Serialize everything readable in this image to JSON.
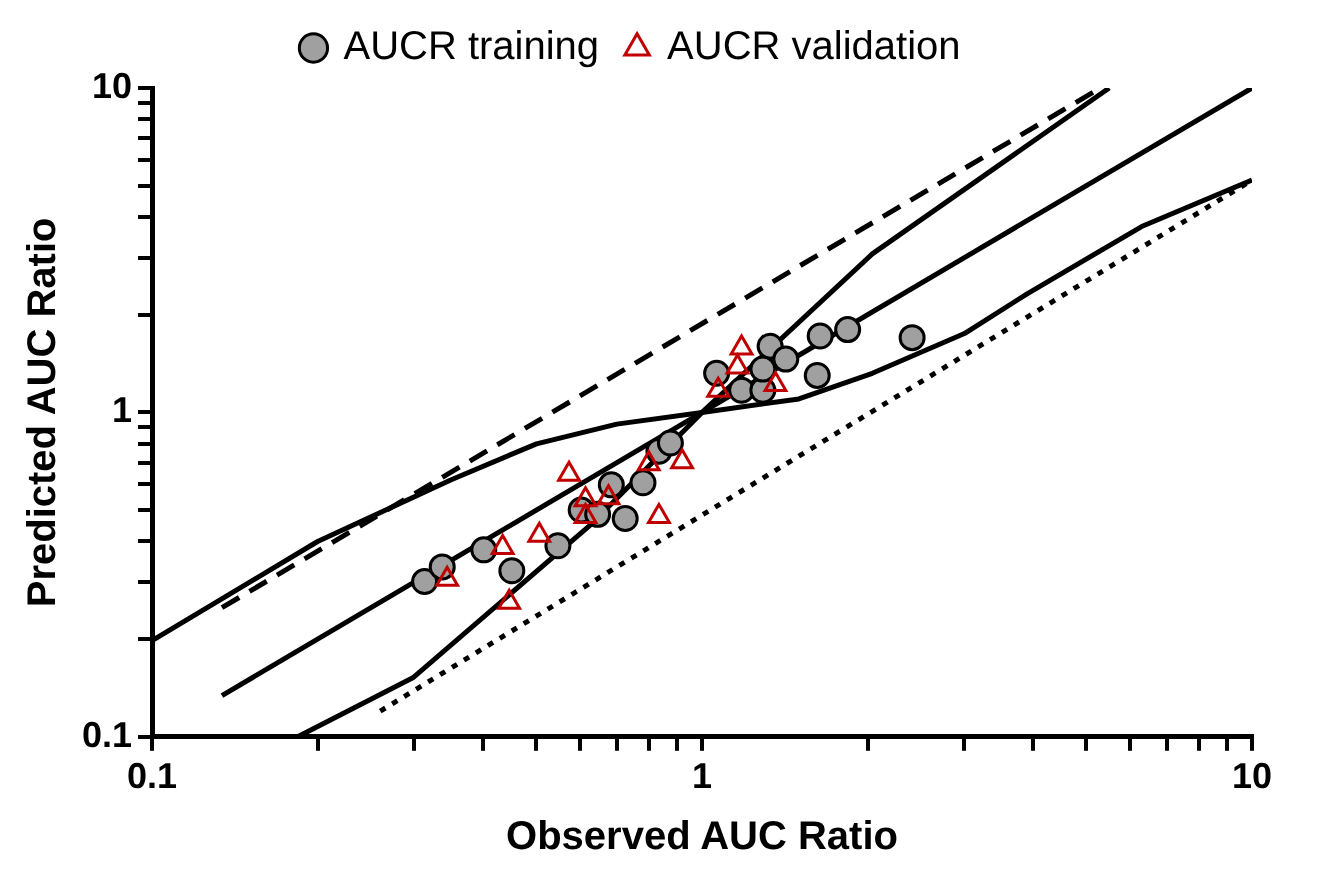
{
  "chart_data": {
    "type": "scatter",
    "xlabel": "Observed AUC Ratio",
    "ylabel": "Predicted AUC Ratio",
    "log": "xy",
    "grid": false,
    "legend": "top",
    "xlim": [
      0.1,
      10
    ],
    "ylim": [
      0.1,
      10
    ],
    "xticks": [
      0.1,
      {
        "value": 0.2,
        "label": null
      },
      {
        "value": 0.3,
        "label": null
      },
      {
        "value": 0.4,
        "label": null
      },
      {
        "value": 0.5,
        "label": null
      },
      {
        "value": 0.6,
        "label": null
      },
      {
        "value": 0.7,
        "label": null
      },
      {
        "value": 0.8,
        "label": null
      },
      {
        "value": 0.9,
        "label": null
      },
      1,
      {
        "value": 2,
        "label": null
      },
      {
        "value": 3,
        "label": null
      },
      {
        "value": 4,
        "label": null
      },
      {
        "value": 5,
        "label": null
      },
      {
        "value": 6,
        "label": null
      },
      {
        "value": 7,
        "label": null
      },
      {
        "value": 8,
        "label": null
      },
      {
        "value": 9,
        "label": null
      },
      10
    ],
    "yticks": [
      0.1,
      {
        "value": 0.2,
        "label": null
      },
      {
        "value": 0.3,
        "label": null
      },
      {
        "value": 0.4,
        "label": null
      },
      {
        "value": 0.5,
        "label": null
      },
      {
        "value": 0.6,
        "label": null
      },
      {
        "value": 0.7,
        "label": null
      },
      {
        "value": 0.8,
        "label": null
      },
      {
        "value": 0.9,
        "label": null
      },
      1,
      {
        "value": 2,
        "label": null
      },
      {
        "value": 3,
        "label": null
      },
      {
        "value": 4,
        "label": null
      },
      {
        "value": 5,
        "label": null
      },
      {
        "value": 6,
        "label": null
      },
      {
        "value": 7,
        "label": null
      },
      {
        "value": 8,
        "label": null
      },
      {
        "value": 9,
        "label": null
      },
      10
    ],
    "series": [
      {
        "type": "line",
        "line_style": "dashed",
        "color": "#000000",
        "x": [
          0.134,
          5.3
        ],
        "values": [
          0.25,
          10
        ]
      },
      {
        "type": "line",
        "line_style": "dotted",
        "color": "#000000",
        "x": [
          0.26,
          10
        ],
        "values": [
          0.12,
          5.2
        ]
      },
      {
        "type": "line",
        "line_style": "solid",
        "color": "#000000",
        "x": [
          0.134,
          10
        ],
        "values": [
          0.134,
          10
        ]
      },
      {
        "type": "line",
        "line_style": "solid",
        "color": "#000000",
        "x": [
          0.184,
          0.298,
          0.627,
          1,
          2.04,
          5.5
        ],
        "values": [
          0.1,
          0.152,
          0.45,
          1,
          3.08,
          10
        ]
      },
      {
        "type": "line",
        "line_style": "solid",
        "color": "#000000",
        "x": [
          0.1,
          0.2,
          0.35,
          0.5,
          0.7,
          1,
          1.5,
          2.04,
          3,
          3.9,
          6.3,
          10
        ],
        "values": [
          0.198,
          0.4,
          0.62,
          0.8,
          0.92,
          1,
          1.1,
          1.32,
          1.75,
          2.32,
          3.74,
          5.2
        ]
      },
      {
        "name": "AUCR training",
        "type": "scatter",
        "marker": "circle",
        "color": "#a0a0a0",
        "x": [
          0.313,
          0.337,
          0.401,
          0.451,
          0.547,
          0.603,
          0.646,
          0.725,
          0.684,
          0.781,
          0.835,
          0.876,
          1.063,
          1.18,
          1.29,
          1.33,
          1.42,
          1.29,
          1.64,
          1.84,
          1.62,
          2.41
        ],
        "values": [
          0.301,
          0.334,
          0.377,
          0.325,
          0.388,
          0.5,
          0.485,
          0.471,
          0.598,
          0.607,
          0.759,
          0.805,
          1.32,
          1.17,
          1.17,
          1.6,
          1.46,
          1.36,
          1.72,
          1.8,
          1.3,
          1.7
        ]
      },
      {
        "name": "AUCR validation",
        "type": "scatter",
        "marker": "triangle",
        "color": "#c00000",
        "x": [
          0.344,
          0.434,
          0.506,
          0.446,
          0.573,
          0.614,
          0.614,
          0.676,
          0.835,
          1.18,
          1.16,
          1.07,
          1.36,
          0.8,
          0.92
        ],
        "values": [
          0.306,
          0.383,
          0.418,
          0.26,
          0.645,
          0.538,
          0.478,
          0.546,
          0.478,
          1.58,
          1.38,
          1.17,
          1.22,
          0.694,
          0.705
        ]
      }
    ]
  }
}
